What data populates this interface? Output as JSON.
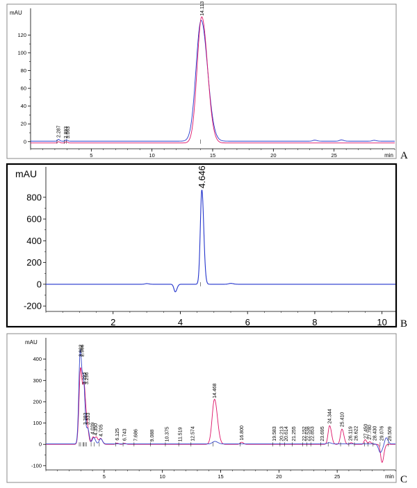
{
  "chart_data": [
    {
      "type": "line",
      "panel": "A",
      "ylabel": "mAU",
      "xunit": "min",
      "xlim": [
        0,
        30
      ],
      "ylim": [
        -8,
        150
      ],
      "xticks": [
        5,
        10,
        15,
        20,
        25
      ],
      "yticks": [
        0,
        20,
        40,
        60,
        80,
        100,
        120
      ],
      "peak_labels": [
        {
          "rt": 2.287,
          "height": 3
        },
        {
          "rt": 2.893,
          "height": 2
        },
        {
          "rt": 3.063,
          "height": 2
        },
        {
          "rt": 14.113,
          "height": 140
        }
      ],
      "series": [
        {
          "color": "#2233cc",
          "baseline": 0.5,
          "peaks": [
            {
              "rt": 2.3,
              "h": 2,
              "w": 0.08
            },
            {
              "rt": 2.95,
              "h": 1.5,
              "w": 0.08
            },
            {
              "rt": 14.05,
              "h": 136,
              "w": 0.42
            },
            {
              "rt": 23.4,
              "h": 1.2,
              "w": 0.15
            },
            {
              "rt": 25.6,
              "h": 1.5,
              "w": 0.15
            },
            {
              "rt": 28.3,
              "h": 1,
              "w": 0.15
            }
          ]
        },
        {
          "color": "#dd1166",
          "baseline": -1.5,
          "peaks": [
            {
              "rt": 2.3,
              "h": 1.5,
              "w": 0.08
            },
            {
              "rt": 2.95,
              "h": 1.5,
              "w": 0.08
            },
            {
              "rt": 14.1,
              "h": 142,
              "w": 0.38
            }
          ]
        }
      ]
    },
    {
      "type": "line",
      "panel": "B",
      "ylabel": "mAU",
      "xlim": [
        0,
        10.4
      ],
      "ylim": [
        -250,
        1080
      ],
      "xticks": [
        2,
        4,
        6,
        8,
        10
      ],
      "yticks": [
        -200,
        0,
        200,
        400,
        600,
        800
      ],
      "peak_labels": [
        {
          "rt": 4.646,
          "height": 870
        }
      ],
      "series": [
        {
          "color": "#2233cc",
          "baseline": 0,
          "peaks": [
            {
              "rt": 3.85,
              "h": -70,
              "w": 0.04
            },
            {
              "rt": 3.0,
              "h": 6,
              "w": 0.05
            },
            {
              "rt": 4.64,
              "h": 870,
              "w": 0.045
            },
            {
              "rt": 5.5,
              "h": 8,
              "w": 0.06
            }
          ]
        }
      ]
    },
    {
      "type": "line",
      "panel": "C",
      "ylabel": "mAU",
      "xunit": "min",
      "xlim": [
        0,
        30
      ],
      "ylim": [
        -120,
        500
      ],
      "xticks": [
        5,
        10,
        15,
        20,
        25
      ],
      "yticks": [
        -100,
        0,
        100,
        200,
        300,
        400
      ],
      "peak_labels": [
        {
          "rt": 2.982,
          "label": "2.982",
          "height": 405
        },
        {
          "rt": 3.1,
          "label": "2.966",
          "height": 405
        },
        {
          "rt": 3.293,
          "label": "3.293",
          "height": 275
        },
        {
          "rt": 3.5,
          "label": "3.296",
          "height": 275
        },
        {
          "rt": 3.383,
          "label": "3.383",
          "height": 85
        },
        {
          "rt": 3.6,
          "label": "3.333",
          "height": 85
        },
        {
          "rt": 4.0,
          "label": "4.039",
          "height": 40
        },
        {
          "rt": 4.25,
          "label": "4.350",
          "height": 35
        },
        {
          "rt": 4.705,
          "label": "4.705",
          "height": 30
        },
        {
          "rt": 6.125,
          "label": "6.125",
          "height": 12
        },
        {
          "rt": 6.743,
          "label": "6.743",
          "height": 10
        },
        {
          "rt": 7.686,
          "label": "7.686",
          "height": 8
        },
        {
          "rt": 9.088,
          "label": "9.088",
          "height": 6
        },
        {
          "rt": 10.375,
          "label": "10.375",
          "height": 6
        },
        {
          "rt": 11.519,
          "label": "11.519",
          "height": 6
        },
        {
          "rt": 12.574,
          "label": "12.574",
          "height": 8
        },
        {
          "rt": 14.468,
          "label": "14.468",
          "height": 210
        },
        {
          "rt": 16.8,
          "label": "16.800",
          "height": 12
        },
        {
          "rt": 19.583,
          "label": "19.583",
          "height": 8
        },
        {
          "rt": 20.213,
          "label": "20.213",
          "height": 8
        },
        {
          "rt": 20.614,
          "label": "20.614",
          "height": 8
        },
        {
          "rt": 21.255,
          "label": "21.255",
          "height": 8
        },
        {
          "rt": 22.152,
          "label": "22.152",
          "height": 8
        },
        {
          "rt": 22.5,
          "label": "22.538",
          "height": 8
        },
        {
          "rt": 22.853,
          "label": "22.853",
          "height": 8
        },
        {
          "rt": 23.695,
          "label": "23.695",
          "height": 8
        },
        {
          "rt": 24.344,
          "label": "24.344",
          "height": 90
        },
        {
          "rt": 25.41,
          "label": "25.410",
          "height": 75
        },
        {
          "rt": 26.119,
          "label": "26.119",
          "height": 10
        },
        {
          "rt": 26.6,
          "label": "26.622",
          "height": 10
        },
        {
          "rt": 27.45,
          "label": "27.450",
          "height": 20
        },
        {
          "rt": 27.75,
          "label": "27.780",
          "height": 15
        },
        {
          "rt": 28.2,
          "label": "28.430",
          "height": 10
        },
        {
          "rt": 28.8,
          "label": "29.076",
          "height": 10
        },
        {
          "rt": 29.5,
          "label": "29.509",
          "height": 8
        }
      ],
      "series": [
        {
          "color": "#dd1166",
          "baseline": 0,
          "peaks": [
            {
              "rt": 2.98,
              "h": 360,
              "w": 0.13
            },
            {
              "rt": 3.3,
              "h": 230,
              "w": 0.1
            },
            {
              "rt": 3.55,
              "h": 80,
              "w": 0.1
            },
            {
              "rt": 4.05,
              "h": 35,
              "w": 0.12
            },
            {
              "rt": 4.35,
              "h": 30,
              "w": 0.1
            },
            {
              "rt": 4.7,
              "h": 28,
              "w": 0.12
            },
            {
              "rt": 6.1,
              "h": 6,
              "w": 0.1
            },
            {
              "rt": 6.75,
              "h": 5,
              "w": 0.1
            },
            {
              "rt": 14.47,
              "h": 212,
              "w": 0.2
            },
            {
              "rt": 16.8,
              "h": 10,
              "w": 0.12
            },
            {
              "rt": 24.35,
              "h": 88,
              "w": 0.13
            },
            {
              "rt": 25.41,
              "h": 72,
              "w": 0.13
            },
            {
              "rt": 26.2,
              "h": 8,
              "w": 0.1
            },
            {
              "rt": 27.4,
              "h": 22,
              "w": 0.1
            },
            {
              "rt": 27.8,
              "h": 12,
              "w": 0.1
            },
            {
              "rt": 28.85,
              "h": -85,
              "w": 0.12
            }
          ]
        },
        {
          "color": "#3344cc",
          "baseline": 2,
          "peaks": [
            {
              "rt": 2.95,
              "h": 440,
              "w": 0.12
            },
            {
              "rt": 3.25,
              "h": 250,
              "w": 0.1
            },
            {
              "rt": 3.6,
              "h": 70,
              "w": 0.1
            },
            {
              "rt": 4.1,
              "h": 30,
              "w": 0.12
            },
            {
              "rt": 4.7,
              "h": 25,
              "w": 0.12
            },
            {
              "rt": 14.5,
              "h": 12,
              "w": 0.2
            },
            {
              "rt": 24.3,
              "h": 6,
              "w": 0.15
            },
            {
              "rt": 28.7,
              "h": -40,
              "w": 0.15
            },
            {
              "rt": 29.2,
              "h": 30,
              "w": 0.12
            }
          ]
        }
      ]
    }
  ]
}
